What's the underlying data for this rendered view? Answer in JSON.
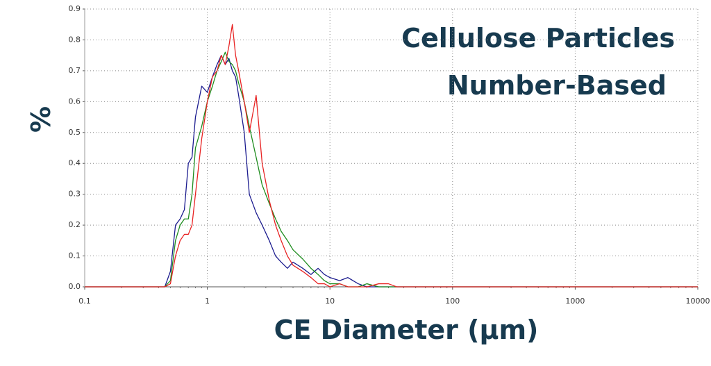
{
  "chart_data": {
    "type": "line",
    "title": "Cellulose Particles",
    "subtitle": "Number-Based",
    "x_label": "CE Diameter (µm)",
    "y_label": "%",
    "xscale": "log",
    "grid": true,
    "x": [
      0.1,
      0.45,
      0.5,
      0.55,
      0.6,
      0.65,
      0.7,
      0.75,
      0.8,
      0.9,
      1.0,
      1.1,
      1.2,
      1.3,
      1.4,
      1.5,
      1.6,
      1.7,
      1.8,
      2.0,
      2.2,
      2.5,
      2.8,
      3.2,
      3.6,
      4,
      4.5,
      5,
      6,
      7,
      8,
      9,
      10,
      12,
      14,
      17,
      20,
      25,
      30,
      35,
      10000
    ],
    "series": [
      {
        "color": "#1c1c8f",
        "values": [
          0,
          0,
          0.05,
          0.2,
          0.22,
          0.25,
          0.4,
          0.42,
          0.55,
          0.65,
          0.63,
          0.68,
          0.72,
          0.75,
          0.72,
          0.74,
          0.7,
          0.68,
          0.62,
          0.5,
          0.3,
          0.24,
          0.2,
          0.15,
          0.1,
          0.08,
          0.06,
          0.08,
          0.06,
          0.04,
          0.06,
          0.04,
          0.03,
          0.02,
          0.03,
          0.01,
          0,
          0,
          0,
          0,
          0
        ]
      },
      {
        "color": "#1e8c1e",
        "values": [
          0,
          0,
          0.02,
          0.15,
          0.2,
          0.22,
          0.22,
          0.3,
          0.45,
          0.52,
          0.6,
          0.65,
          0.7,
          0.73,
          0.76,
          0.73,
          0.72,
          0.7,
          0.66,
          0.6,
          0.52,
          0.42,
          0.33,
          0.27,
          0.22,
          0.18,
          0.15,
          0.12,
          0.09,
          0.06,
          0.04,
          0.02,
          0.01,
          0.01,
          0,
          0,
          0.01,
          0,
          0,
          0,
          0
        ]
      },
      {
        "color": "#e82222",
        "values": [
          0,
          0,
          0.01,
          0.1,
          0.15,
          0.17,
          0.17,
          0.2,
          0.3,
          0.48,
          0.6,
          0.68,
          0.7,
          0.75,
          0.72,
          0.78,
          0.85,
          0.75,
          0.7,
          0.6,
          0.5,
          0.62,
          0.4,
          0.28,
          0.2,
          0.15,
          0.1,
          0.07,
          0.05,
          0.03,
          0.01,
          0.01,
          0,
          0.01,
          0,
          0,
          0,
          0.01,
          0.01,
          0,
          0
        ]
      }
    ],
    "xlim": [
      0.1,
      10000
    ],
    "xticks": [
      0.1,
      1,
      10,
      100,
      1000,
      10000
    ],
    "ylim": [
      0,
      0.9
    ],
    "yticks": [
      {
        "value": 0,
        "label": "0.0"
      },
      0.1,
      0.2,
      0.3,
      0.4,
      0.5,
      0.6,
      0.7,
      0.8,
      0.9
    ]
  }
}
